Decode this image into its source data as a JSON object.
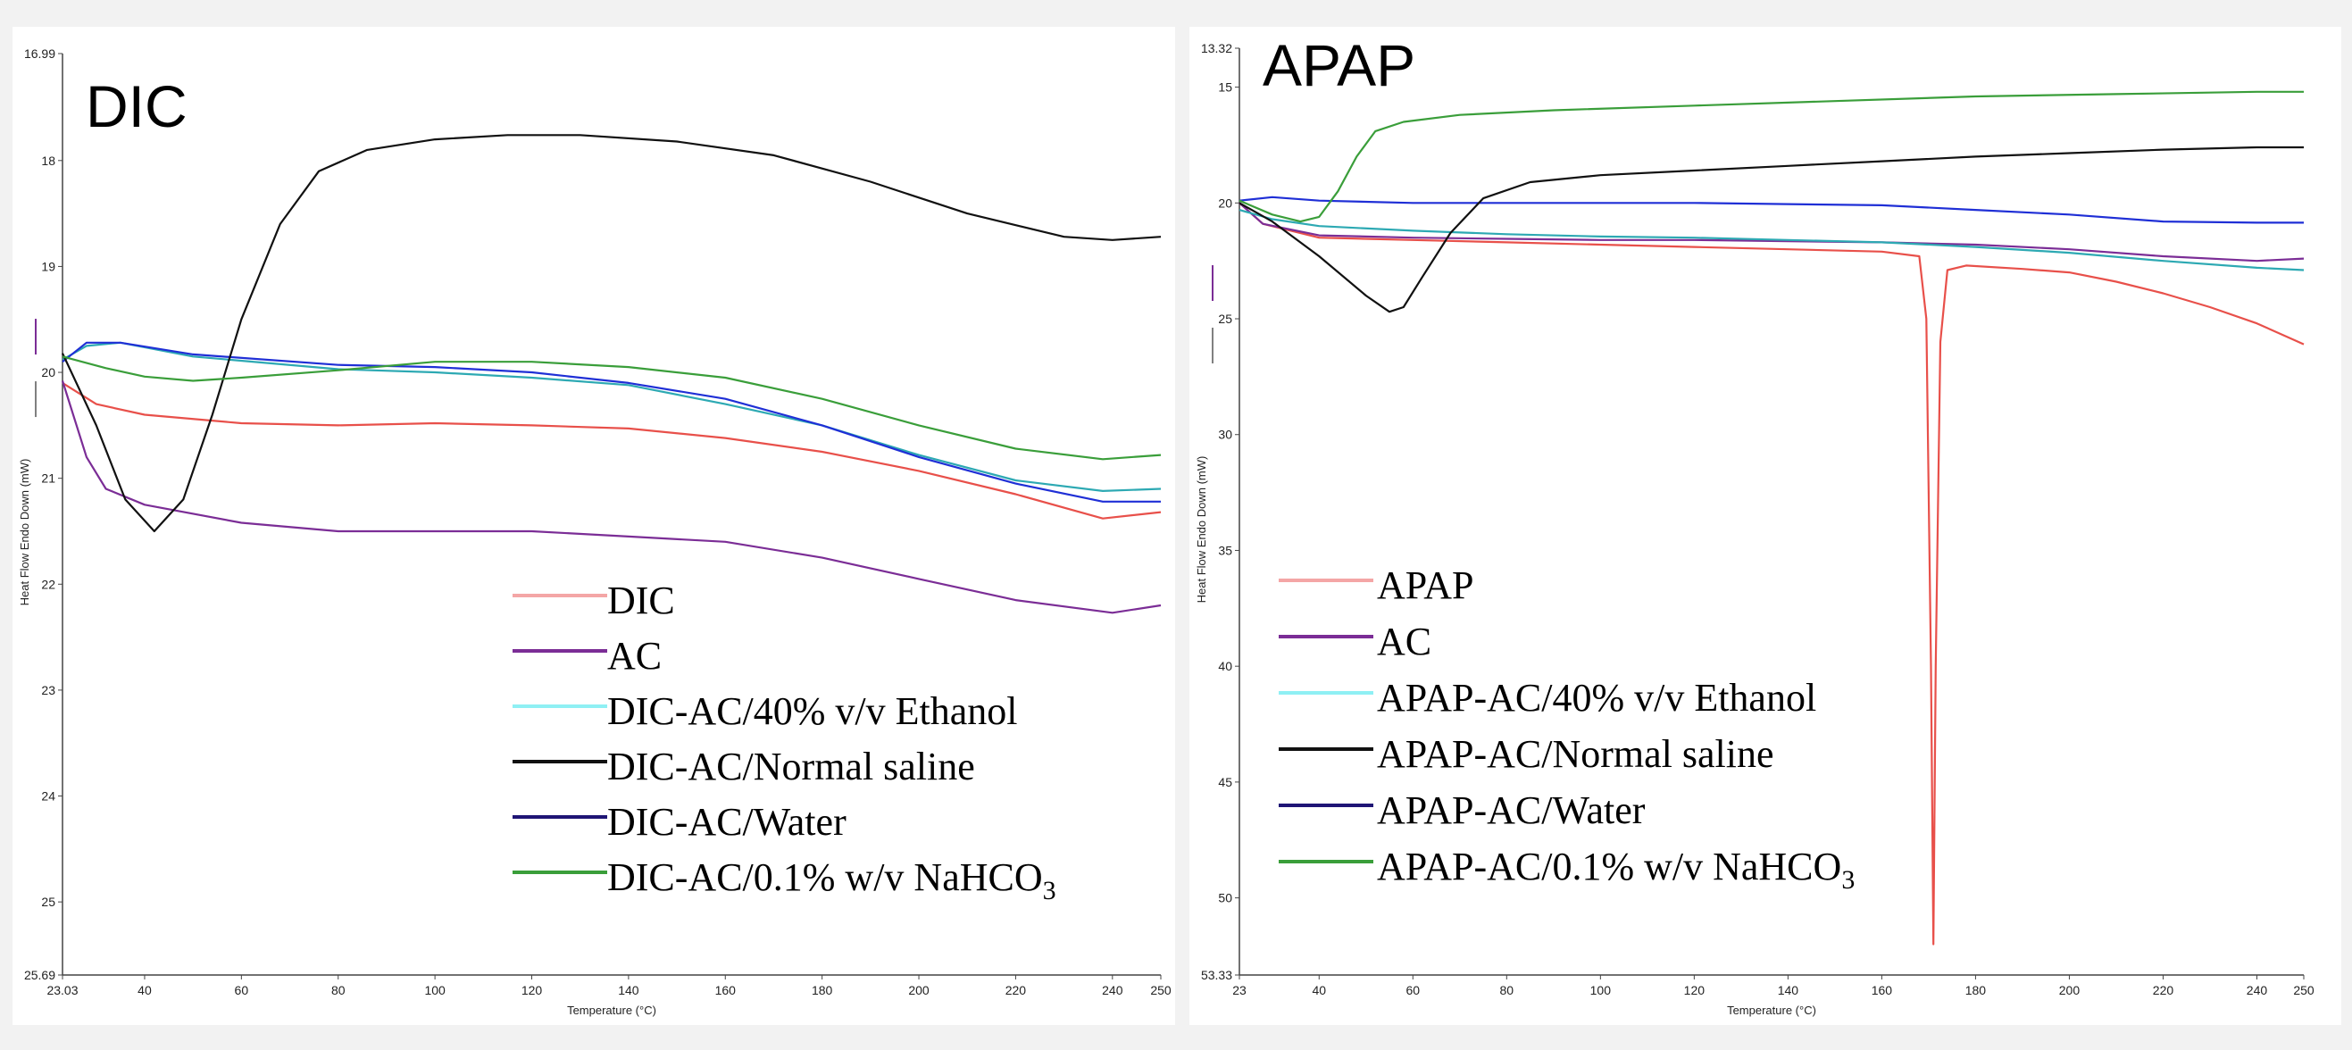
{
  "chart_data": [
    {
      "type": "line",
      "title": "DIC",
      "xlabel": "Temperature (°C)",
      "ylabel": "Heat Flow Endo Down (mW)",
      "xlim": [
        23.03,
        250
      ],
      "ylim": [
        25.69,
        16.99
      ],
      "y_axis_inverted": true,
      "x_ticks": [
        "23.03",
        "40",
        "60",
        "80",
        "100",
        "120",
        "140",
        "160",
        "180",
        "200",
        "220",
        "240",
        "250"
      ],
      "y_ticks": [
        "16.99",
        "18",
        "19",
        "20",
        "21",
        "22",
        "23",
        "24",
        "25",
        "25.69"
      ],
      "legend_position": "bottom-right",
      "legend": [
        {
          "label": "DIC",
          "sub": "",
          "color": "#f4a6a6"
        },
        {
          "label": "AC",
          "sub": "",
          "color": "#7b2d96"
        },
        {
          "label": "DIC-AC/40% v/v Ethanol",
          "sub": "",
          "color": "#8ff0f4"
        },
        {
          "label": "DIC-AC/Normal saline",
          "sub": "",
          "color": "#111111"
        },
        {
          "label": "DIC-AC/Water",
          "sub": "",
          "color": "#1f1575"
        },
        {
          "label": "DIC-AC/0.1% w/v NaHCO",
          "sub": "3",
          "color": "#3a9e3a"
        }
      ],
      "series": [
        {
          "color": "#e8504a",
          "points": [
            [
              23.03,
              20.1
            ],
            [
              30,
              20.3
            ],
            [
              40,
              20.4
            ],
            [
              60,
              20.48
            ],
            [
              80,
              20.5
            ],
            [
              100,
              20.48
            ],
            [
              120,
              20.5
            ],
            [
              140,
              20.53
            ],
            [
              160,
              20.62
            ],
            [
              180,
              20.75
            ],
            [
              200,
              20.93
            ],
            [
              220,
              21.15
            ],
            [
              238,
              21.38
            ],
            [
              250,
              21.32
            ]
          ]
        },
        {
          "color": "#7b2d96",
          "points": [
            [
              23.03,
              20.08
            ],
            [
              28,
              20.8
            ],
            [
              32,
              21.1
            ],
            [
              40,
              21.25
            ],
            [
              60,
              21.42
            ],
            [
              80,
              21.5
            ],
            [
              100,
              21.5
            ],
            [
              120,
              21.5
            ],
            [
              140,
              21.55
            ],
            [
              160,
              21.6
            ],
            [
              180,
              21.75
            ],
            [
              200,
              21.95
            ],
            [
              220,
              22.15
            ],
            [
              240,
              22.27
            ],
            [
              250,
              22.2
            ]
          ]
        },
        {
          "color": "#2da9b3",
          "points": [
            [
              23.03,
              19.88
            ],
            [
              28,
              19.75
            ],
            [
              35,
              19.72
            ],
            [
              50,
              19.85
            ],
            [
              80,
              19.97
            ],
            [
              100,
              20.0
            ],
            [
              120,
              20.05
            ],
            [
              140,
              20.12
            ],
            [
              160,
              20.3
            ],
            [
              180,
              20.5
            ],
            [
              200,
              20.78
            ],
            [
              220,
              21.02
            ],
            [
              238,
              21.12
            ],
            [
              250,
              21.1
            ]
          ]
        },
        {
          "color": "#1f2fd6",
          "points": [
            [
              23.03,
              19.9
            ],
            [
              28,
              19.72
            ],
            [
              35,
              19.72
            ],
            [
              50,
              19.83
            ],
            [
              80,
              19.93
            ],
            [
              100,
              19.95
            ],
            [
              120,
              20.0
            ],
            [
              140,
              20.1
            ],
            [
              160,
              20.25
            ],
            [
              180,
              20.5
            ],
            [
              200,
              20.8
            ],
            [
              220,
              21.05
            ],
            [
              238,
              21.22
            ],
            [
              250,
              21.22
            ]
          ]
        },
        {
          "color": "#111111",
          "points": [
            [
              23.03,
              19.82
            ],
            [
              30,
              20.5
            ],
            [
              36,
              21.2
            ],
            [
              42,
              21.5
            ],
            [
              48,
              21.2
            ],
            [
              54,
              20.4
            ],
            [
              60,
              19.5
            ],
            [
              68,
              18.6
            ],
            [
              76,
              18.1
            ],
            [
              86,
              17.9
            ],
            [
              100,
              17.8
            ],
            [
              115,
              17.76
            ],
            [
              130,
              17.76
            ],
            [
              150,
              17.82
            ],
            [
              170,
              17.95
            ],
            [
              190,
              18.2
            ],
            [
              210,
              18.5
            ],
            [
              230,
              18.72
            ],
            [
              240,
              18.75
            ],
            [
              250,
              18.72
            ]
          ]
        },
        {
          "color": "#3a9e3a",
          "points": [
            [
              23.03,
              19.85
            ],
            [
              32,
              19.96
            ],
            [
              40,
              20.04
            ],
            [
              50,
              20.08
            ],
            [
              60,
              20.05
            ],
            [
              80,
              19.98
            ],
            [
              100,
              19.9
            ],
            [
              120,
              19.9
            ],
            [
              140,
              19.95
            ],
            [
              160,
              20.05
            ],
            [
              180,
              20.25
            ],
            [
              200,
              20.5
            ],
            [
              220,
              20.72
            ],
            [
              238,
              20.82
            ],
            [
              250,
              20.78
            ]
          ]
        }
      ]
    },
    {
      "type": "line",
      "title": "APAP",
      "xlabel": "Temperature (°C)",
      "ylabel": "Heat Flow Endo Down (mW)",
      "xlim": [
        23,
        250
      ],
      "ylim": [
        53.33,
        13.32
      ],
      "y_axis_inverted": true,
      "x_ticks": [
        "23",
        "40",
        "60",
        "80",
        "100",
        "120",
        "140",
        "160",
        "180",
        "200",
        "220",
        "240",
        "250"
      ],
      "y_ticks": [
        "13.32",
        "15",
        "20",
        "25",
        "30",
        "35",
        "40",
        "45",
        "50",
        "53.33"
      ],
      "legend_position": "bottom-left",
      "legend": [
        {
          "label": "APAP",
          "sub": "",
          "color": "#f4a6a6"
        },
        {
          "label": "AC",
          "sub": "",
          "color": "#7b2d96"
        },
        {
          "label": "APAP-AC/40% v/v Ethanol",
          "sub": "",
          "color": "#8ff0f4"
        },
        {
          "label": "APAP-AC/Normal saline",
          "sub": "",
          "color": "#111111"
        },
        {
          "label": "APAP-AC/Water",
          "sub": "",
          "color": "#1f1575"
        },
        {
          "label": "APAP-AC/0.1% w/v NaHCO",
          "sub": "3",
          "color": "#3a9e3a"
        }
      ],
      "series": [
        {
          "color": "#e8504a",
          "points": [
            [
              23,
              20
            ],
            [
              28,
              20.9
            ],
            [
              40,
              21.5
            ],
            [
              60,
              21.6
            ],
            [
              80,
              21.7
            ],
            [
              100,
              21.8
            ],
            [
              120,
              21.9
            ],
            [
              140,
              22.0
            ],
            [
              160,
              22.1
            ],
            [
              168,
              22.3
            ],
            [
              169.5,
              25
            ],
            [
              170.5,
              40
            ],
            [
              171,
              52
            ],
            [
              171.5,
              40
            ],
            [
              172.5,
              26
            ],
            [
              174,
              22.9
            ],
            [
              178,
              22.7
            ],
            [
              190,
              22.85
            ],
            [
              200,
              23.0
            ],
            [
              210,
              23.4
            ],
            [
              220,
              23.9
            ],
            [
              230,
              24.5
            ],
            [
              240,
              25.2
            ],
            [
              250,
              26.1
            ]
          ]
        },
        {
          "color": "#7b2d96",
          "points": [
            [
              23,
              20
            ],
            [
              28,
              20.9
            ],
            [
              40,
              21.4
            ],
            [
              60,
              21.5
            ],
            [
              80,
              21.55
            ],
            [
              100,
              21.6
            ],
            [
              120,
              21.6
            ],
            [
              140,
              21.65
            ],
            [
              160,
              21.7
            ],
            [
              180,
              21.8
            ],
            [
              200,
              22.0
            ],
            [
              220,
              22.3
            ],
            [
              240,
              22.5
            ],
            [
              250,
              22.4
            ]
          ]
        },
        {
          "color": "#2da9b3",
          "points": [
            [
              23,
              20.3
            ],
            [
              30,
              20.7
            ],
            [
              40,
              21.0
            ],
            [
              60,
              21.2
            ],
            [
              80,
              21.35
            ],
            [
              100,
              21.45
            ],
            [
              120,
              21.5
            ],
            [
              140,
              21.6
            ],
            [
              160,
              21.7
            ],
            [
              180,
              21.9
            ],
            [
              200,
              22.15
            ],
            [
              220,
              22.5
            ],
            [
              240,
              22.8
            ],
            [
              250,
              22.9
            ]
          ]
        },
        {
          "color": "#1f2fd6",
          "points": [
            [
              23,
              19.9
            ],
            [
              30,
              19.75
            ],
            [
              40,
              19.9
            ],
            [
              60,
              20.0
            ],
            [
              80,
              20.0
            ],
            [
              100,
              20.0
            ],
            [
              120,
              20.0
            ],
            [
              140,
              20.05
            ],
            [
              160,
              20.1
            ],
            [
              180,
              20.3
            ],
            [
              200,
              20.5
            ],
            [
              220,
              20.8
            ],
            [
              240,
              20.85
            ],
            [
              250,
              20.85
            ]
          ]
        },
        {
          "color": "#111111",
          "points": [
            [
              23,
              20
            ],
            [
              30,
              20.8
            ],
            [
              40,
              22.3
            ],
            [
              50,
              24.0
            ],
            [
              55,
              24.7
            ],
            [
              58,
              24.5
            ],
            [
              62,
              23.2
            ],
            [
              68,
              21.3
            ],
            [
              75,
              19.8
            ],
            [
              85,
              19.1
            ],
            [
              100,
              18.8
            ],
            [
              120,
              18.6
            ],
            [
              140,
              18.4
            ],
            [
              160,
              18.2
            ],
            [
              180,
              18.0
            ],
            [
              200,
              17.85
            ],
            [
              220,
              17.7
            ],
            [
              240,
              17.6
            ],
            [
              250,
              17.6
            ]
          ]
        },
        {
          "color": "#3a9e3a",
          "points": [
            [
              23,
              19.9
            ],
            [
              30,
              20.5
            ],
            [
              36,
              20.8
            ],
            [
              40,
              20.6
            ],
            [
              44,
              19.5
            ],
            [
              48,
              18.0
            ],
            [
              52,
              16.9
            ],
            [
              58,
              16.5
            ],
            [
              70,
              16.2
            ],
            [
              90,
              16.0
            ],
            [
              120,
              15.8
            ],
            [
              150,
              15.6
            ],
            [
              180,
              15.4
            ],
            [
              210,
              15.3
            ],
            [
              240,
              15.2
            ],
            [
              250,
              15.2
            ]
          ]
        }
      ]
    }
  ]
}
